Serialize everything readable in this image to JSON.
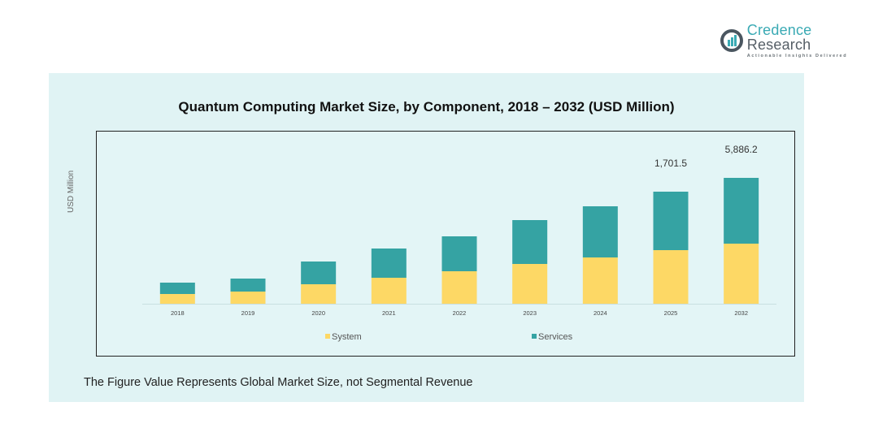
{
  "brand": {
    "name_part1": "Credence",
    "name_part2": " Research",
    "tagline": "Actionable Insights Delivered",
    "icon": "bar-chart-circle-icon",
    "colors": {
      "accent": "#3aaab4",
      "text": "#555e66"
    }
  },
  "footnote": "The Figure Value Represents Global Market Size, not Segmental Revenue",
  "chart_data": {
    "type": "bar",
    "stacked": true,
    "title": "Quantum Computing Market Size, by Component, 2018 – 2032 (USD Million)",
    "xlabel": "",
    "ylabel": "USD Million",
    "categories": [
      "2018",
      "2019",
      "2020",
      "2021",
      "2022",
      "2023",
      "2024",
      "2025",
      "2032"
    ],
    "series": [
      {
        "name": "System",
        "color": "#fdd865",
        "values": [
          12,
          15,
          24,
          32,
          40,
          49,
          57,
          66,
          74
        ]
      },
      {
        "name": "Services",
        "color": "#35a3a3",
        "values": [
          14,
          16,
          28,
          36,
          43,
          54,
          63,
          72,
          81
        ]
      }
    ],
    "value_units_note": "relative (axis unlabeled)",
    "ylim": [
      0,
      170
    ],
    "annotations": [
      {
        "category": "2025",
        "text": "1,701.5"
      },
      {
        "category": "2032",
        "text": "5,886.2"
      }
    ],
    "grid": false,
    "legend": {
      "position": "bottom",
      "entries": [
        "System",
        "Services"
      ]
    }
  }
}
